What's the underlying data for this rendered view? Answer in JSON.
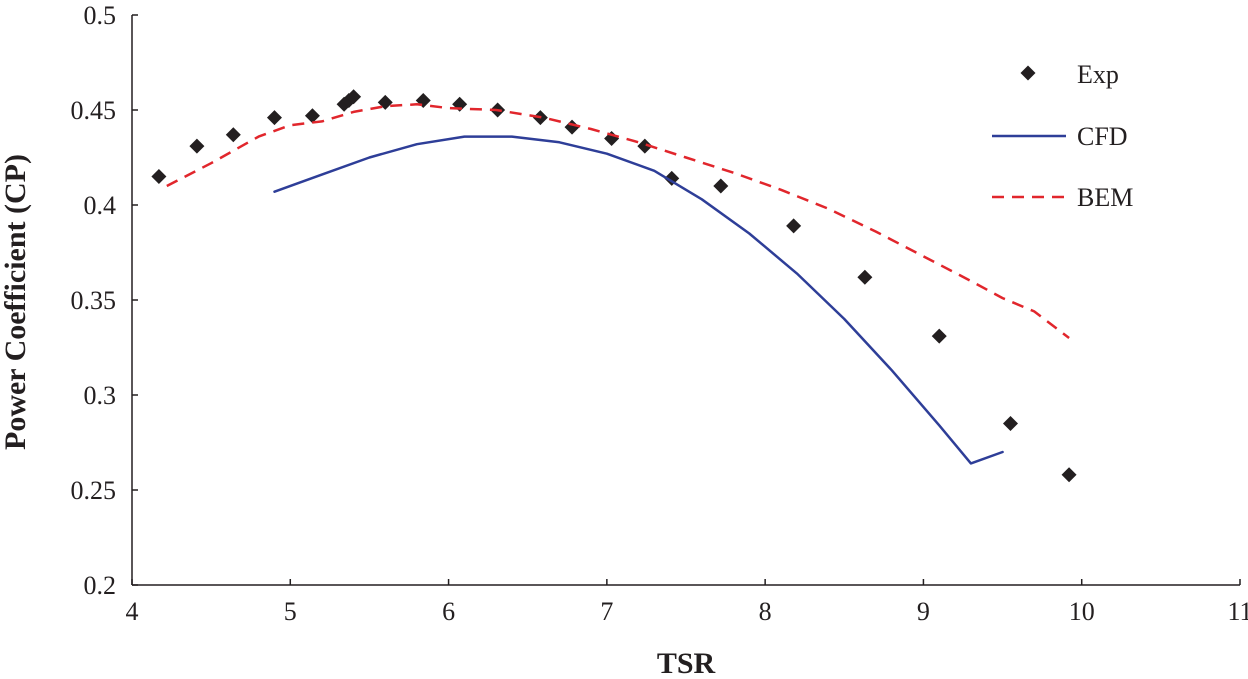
{
  "chart_data": {
    "type": "line",
    "title": "",
    "xlabel": "TSR",
    "ylabel": "Power Coefficient (CP)",
    "xlim": [
      4,
      11
    ],
    "ylim": [
      0.2,
      0.5
    ],
    "xticks": [
      4,
      5,
      6,
      7,
      8,
      9,
      10,
      11
    ],
    "xtick_labels": [
      "4",
      "5",
      "6",
      "7",
      "8",
      "9",
      "10",
      "11"
    ],
    "yticks": [
      0.2,
      0.25,
      0.3,
      0.35,
      0.4,
      0.45,
      0.5
    ],
    "ytick_labels": [
      "0.2",
      "0.25",
      "0.3",
      "0.35",
      "0.4",
      "0.45",
      "0.5"
    ],
    "grid": false,
    "legend_position": "top-right",
    "series": [
      {
        "name": "Exp",
        "kind": "scatter",
        "marker": "diamond",
        "color": "#231f20",
        "x": [
          4.17,
          4.41,
          4.64,
          4.9,
          5.14,
          5.34,
          5.37,
          5.4,
          5.6,
          5.84,
          6.07,
          6.31,
          6.58,
          6.78,
          7.03,
          7.24,
          7.41,
          7.72,
          8.18,
          8.63,
          9.1,
          9.55,
          9.92
        ],
        "y": [
          0.415,
          0.431,
          0.437,
          0.446,
          0.447,
          0.453,
          0.455,
          0.457,
          0.454,
          0.455,
          0.453,
          0.45,
          0.446,
          0.441,
          0.435,
          0.431,
          0.414,
          0.41,
          0.389,
          0.362,
          0.331,
          0.285,
          0.258
        ]
      },
      {
        "name": "CFD",
        "kind": "line",
        "dash": "solid",
        "color": "#2e3e98",
        "x": [
          4.9,
          5.2,
          5.5,
          5.8,
          6.1,
          6.4,
          6.7,
          7.0,
          7.3,
          7.6,
          7.9,
          8.2,
          8.5,
          8.8,
          9.1,
          9.3,
          9.5
        ],
        "y": [
          0.407,
          0.416,
          0.425,
          0.432,
          0.436,
          0.436,
          0.433,
          0.427,
          0.418,
          0.403,
          0.385,
          0.364,
          0.34,
          0.313,
          0.284,
          0.264,
          0.27
        ]
      },
      {
        "name": "BEM",
        "kind": "line",
        "dash": "dashed",
        "color": "#e1262c",
        "x": [
          4.22,
          4.5,
          4.8,
          5.0,
          5.2,
          5.4,
          5.6,
          5.8,
          6.0,
          6.3,
          6.6,
          6.9,
          7.2,
          7.5,
          7.8,
          8.1,
          8.4,
          8.7,
          9.0,
          9.3,
          9.5,
          9.7,
          9.92
        ],
        "y": [
          0.41,
          0.422,
          0.436,
          0.442,
          0.444,
          0.449,
          0.452,
          0.453,
          0.451,
          0.45,
          0.446,
          0.44,
          0.433,
          0.425,
          0.417,
          0.408,
          0.398,
          0.386,
          0.373,
          0.36,
          0.351,
          0.344,
          0.33
        ]
      }
    ]
  }
}
